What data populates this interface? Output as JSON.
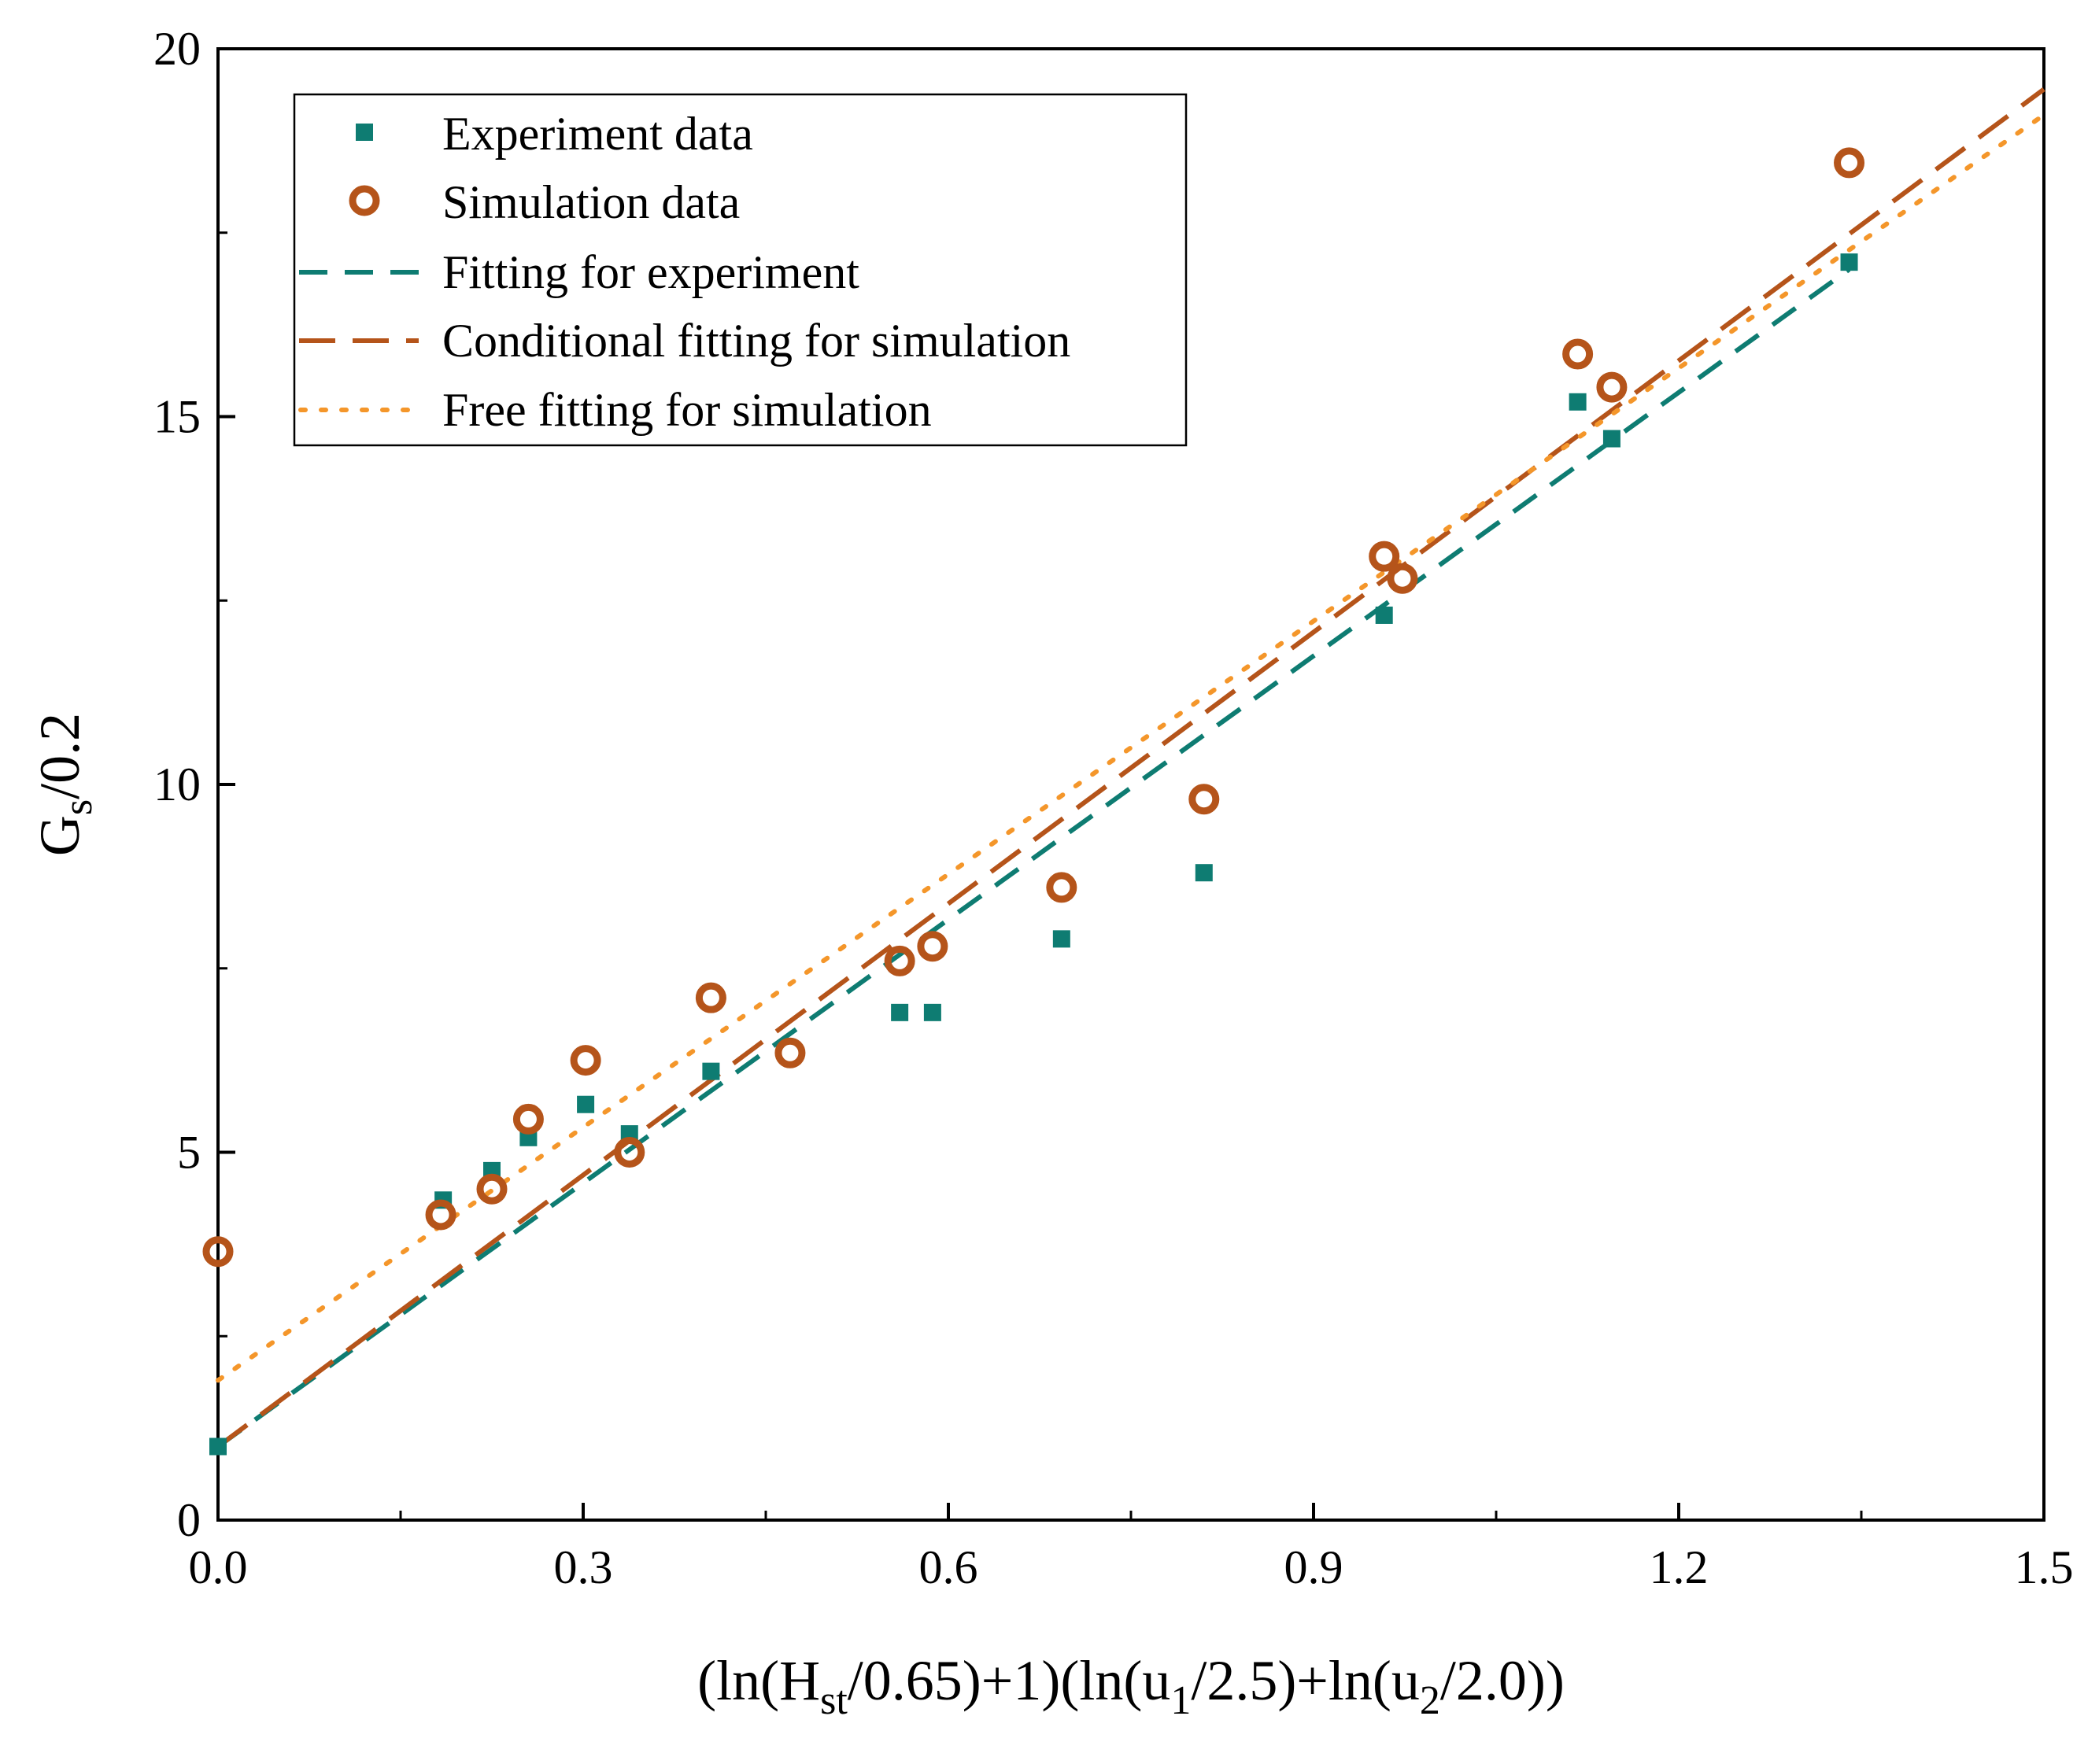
{
  "chart_data": {
    "type": "scatter",
    "title": "",
    "xlabel_parts": [
      "(ln(H",
      "st",
      "/0.65)+1)(ln(u",
      "1",
      "/2.5)+ln(u",
      "2",
      "/2.0))"
    ],
    "ylabel_parts": [
      "G",
      "s",
      "/0.2"
    ],
    "xlim": [
      0,
      1.5
    ],
    "ylim": [
      0,
      20
    ],
    "x_ticks": [
      0.0,
      0.3,
      0.6,
      0.9,
      1.2,
      1.5
    ],
    "x_tick_labels": [
      "0.0",
      "0.3",
      "0.6",
      "0.9",
      "1.2",
      "1.5"
    ],
    "y_ticks": [
      0,
      5,
      10,
      15,
      20
    ],
    "y_tick_labels": [
      "0",
      "5",
      "10",
      "15",
      "20"
    ],
    "grid": false,
    "legend_position": "top-left",
    "series": [
      {
        "name": "Experiment data",
        "kind": "points",
        "marker": "square",
        "color": "#0e7c72",
        "x": [
          0.0,
          0.185,
          0.225,
          0.255,
          0.302,
          0.338,
          0.405,
          0.56,
          0.587,
          0.693,
          0.81,
          0.958,
          1.117,
          1.145,
          1.34
        ],
        "y": [
          1.0,
          4.35,
          4.75,
          5.2,
          5.65,
          5.25,
          6.1,
          6.9,
          6.9,
          7.9,
          8.8,
          12.3,
          15.2,
          14.7,
          17.1
        ]
      },
      {
        "name": "Simulation data",
        "kind": "points",
        "marker": "circle",
        "color": "#b5541a",
        "x": [
          0.0,
          0.183,
          0.225,
          0.255,
          0.302,
          0.338,
          0.405,
          0.47,
          0.56,
          0.587,
          0.693,
          0.81,
          0.958,
          0.973,
          1.117,
          1.145,
          1.34
        ],
        "y": [
          3.65,
          4.15,
          4.5,
          5.45,
          6.25,
          5.0,
          7.1,
          6.35,
          7.6,
          7.8,
          8.6,
          9.8,
          13.1,
          12.8,
          15.85,
          15.4,
          18.45
        ]
      },
      {
        "name": "Fitting for experiment",
        "kind": "line",
        "dash": "long",
        "color": "#0e7c72",
        "x": [
          0.0,
          1.34
        ],
        "y": [
          1.0,
          17.0
        ]
      },
      {
        "name": "Conditional fitting for simulation",
        "kind": "line",
        "dash": "longer",
        "color": "#b5541a",
        "x": [
          0.0,
          1.5
        ],
        "y": [
          1.0,
          19.45
        ]
      },
      {
        "name": "Free fitting for simulation",
        "kind": "line",
        "dash": "dot",
        "color": "#f4962a",
        "x": [
          0.0,
          1.5
        ],
        "y": [
          1.9,
          19.1
        ]
      }
    ]
  }
}
